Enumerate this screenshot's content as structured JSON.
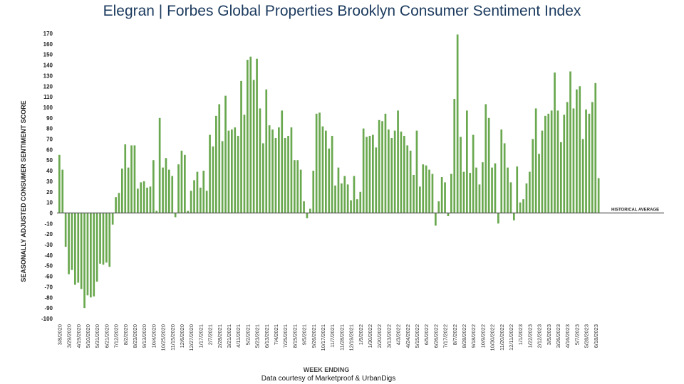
{
  "title": {
    "brand": "Elegran | Forbes Global Properties",
    "subject": "Brooklyn Consumer Sentiment Index"
  },
  "colors": {
    "bar": "#6aa84f",
    "title": "#1b3a5e",
    "axis": "#555555"
  },
  "chart_data": {
    "type": "bar",
    "ylabel": "SEASONALLY ADJUSTED CONSUMER SENTIMENT SCORE",
    "xlabel": "WEEK ENDING",
    "credit": "Data courtesy of Marketproof & UrbanDigs",
    "reference_line": {
      "label": "HISTORICAL AVERAGE",
      "value": 0
    },
    "ylim": [
      -100,
      170
    ],
    "yticks": [
      170,
      160,
      150,
      140,
      130,
      120,
      110,
      100,
      90,
      80,
      70,
      60,
      50,
      40,
      30,
      20,
      10,
      0,
      -10,
      -20,
      -30,
      -40,
      -50,
      -60,
      -70,
      -80,
      -90,
      -100
    ],
    "xticks": [
      "3/8/2020",
      "3/29/2020",
      "4/19/2020",
      "5/10/2020",
      "5/31/2020",
      "6/21/2020",
      "7/12/2020",
      "8/2/2020",
      "8/23/2020",
      "9/13/2020",
      "10/4/2020",
      "10/25/2020",
      "11/15/2020",
      "12/6/2020",
      "12/27/2020",
      "1/17/2021",
      "2/7/2021",
      "2/28/2021",
      "3/21/2021",
      "4/11/2021",
      "5/2/2021",
      "5/23/2021",
      "6/13/2021",
      "7/4/2021",
      "7/25/2021",
      "8/15/2021",
      "9/5/2021",
      "9/26/2021",
      "10/17/2021",
      "11/7/2021",
      "11/28/2021",
      "12/19/2021",
      "1/9/2022",
      "1/30/2022",
      "2/20/2022",
      "3/13/2022",
      "4/3/2022",
      "4/24/2022",
      "5/15/2022",
      "6/5/2022",
      "6/26/2022",
      "7/17/2022",
      "8/7/2022",
      "8/28/2022",
      "9/18/2022",
      "10/9/2022",
      "10/30/2022",
      "11/20/2022",
      "12/11/2022",
      "1/1/2023",
      "1/22/2023",
      "2/12/2023",
      "3/5/2023",
      "3/26/2023",
      "4/16/2023",
      "5/7/2023",
      "5/28/2023",
      "6/18/2023"
    ],
    "tick_every": 3,
    "values": [
      55,
      41,
      -32,
      -58,
      -54,
      -68,
      -66,
      -72,
      -90,
      -78,
      -80,
      -79,
      -65,
      -48,
      -49,
      -47,
      -51,
      -11,
      15,
      19,
      42,
      65,
      43,
      64,
      64,
      23,
      29,
      30,
      24,
      25,
      50,
      2,
      90,
      43,
      52,
      41,
      35,
      -4,
      46,
      59,
      55,
      2,
      21,
      31,
      39,
      24,
      40,
      21,
      74,
      63,
      92,
      103,
      68,
      111,
      78,
      79,
      81,
      73,
      125,
      93,
      145,
      148,
      126,
      146,
      99,
      66,
      117,
      83,
      79,
      71,
      81,
      97,
      71,
      73,
      81,
      50,
      50,
      41,
      11,
      -5,
      4,
      40,
      94,
      95,
      82,
      78,
      61,
      73,
      26,
      43,
      28,
      35,
      27,
      12,
      35,
      13,
      20,
      80,
      72,
      73,
      74,
      62,
      88,
      87,
      94,
      79,
      71,
      78,
      97,
      77,
      73,
      64,
      59,
      36,
      78,
      25,
      46,
      45,
      41,
      37,
      -12,
      11,
      34,
      29,
      -3,
      37,
      108,
      169,
      72,
      39,
      97,
      38,
      74,
      43,
      27,
      48,
      103,
      90,
      43,
      47,
      -10,
      79,
      66,
      43,
      29,
      -7,
      44,
      10,
      13,
      28,
      39,
      70,
      99,
      56,
      78,
      92,
      94,
      97,
      133,
      97,
      67,
      93,
      105,
      134,
      99,
      117,
      120,
      70,
      98,
      94,
      105,
      123,
      33
    ]
  }
}
